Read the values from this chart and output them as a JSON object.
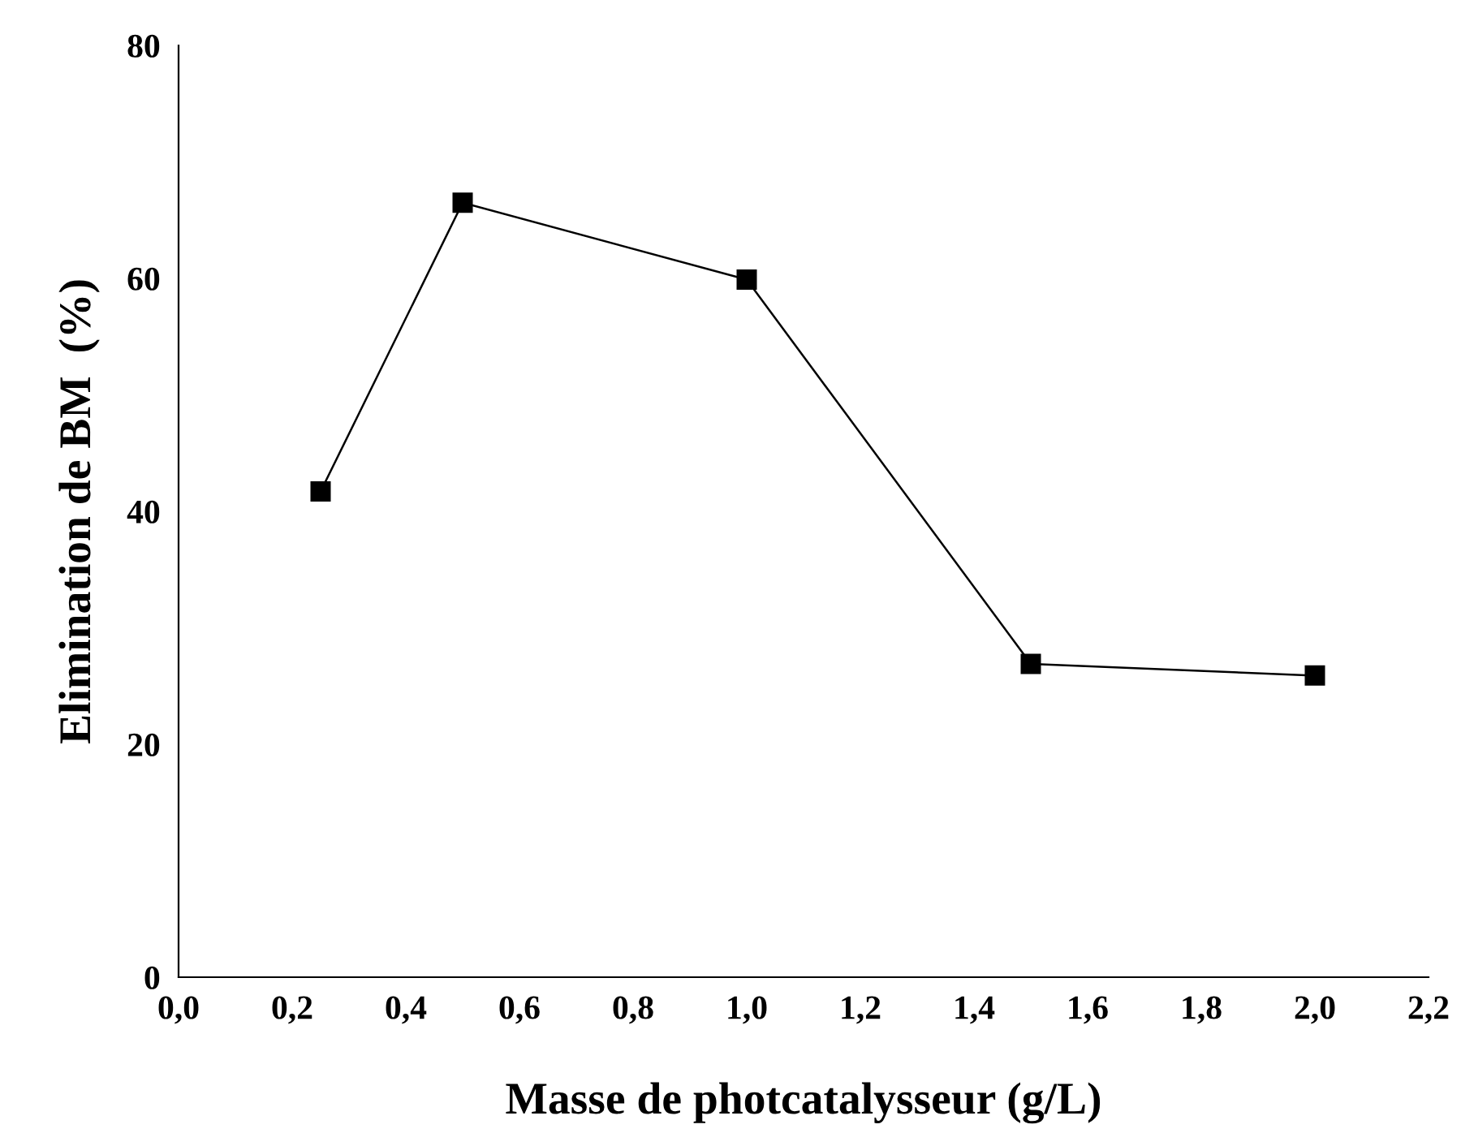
{
  "chart_data": {
    "type": "line",
    "xlabel": "Masse de photcatalysseur (g/L)",
    "ylabel": "Elimination de BM  (%)",
    "x": [
      0.25,
      0.5,
      1.0,
      1.5,
      2.0
    ],
    "series": [
      {
        "color": "#000000",
        "values": [
          41.7,
          66.5,
          59.9,
          26.9,
          25.9
        ]
      }
    ],
    "xlim": [
      0,
      2.2
    ],
    "xticks": [
      {
        "value": 0,
        "label": "0,0"
      },
      {
        "value": 0.2,
        "label": "0,2"
      },
      {
        "value": 0.4,
        "label": "0,4"
      },
      {
        "value": 0.6,
        "label": "0,6"
      },
      {
        "value": 0.8,
        "label": "0,8"
      },
      {
        "value": 1.0,
        "label": "1,0"
      },
      {
        "value": 1.2,
        "label": "1,2"
      },
      {
        "value": 1.4,
        "label": "1,4"
      },
      {
        "value": 1.6,
        "label": "1,6"
      },
      {
        "value": 1.8,
        "label": "1,8"
      },
      {
        "value": 2.0,
        "label": "2,0"
      },
      {
        "value": 2.2,
        "label": "2,2"
      }
    ],
    "ylim": [
      0,
      80
    ],
    "yticks": [
      0,
      20,
      40,
      60,
      80
    ],
    "grid": false,
    "legend": false,
    "marker": "square",
    "line_style": "solid"
  }
}
